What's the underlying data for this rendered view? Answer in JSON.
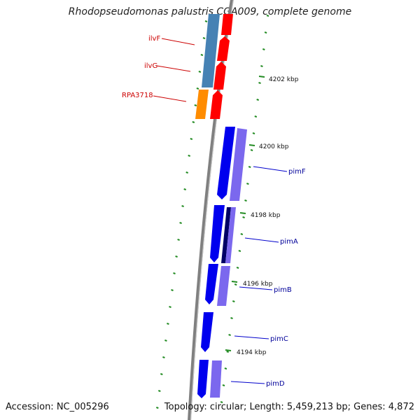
{
  "title": "Rhodopseudomonas palustris CGA009, complete genome",
  "accession": "Accession: NC_005296",
  "topology": "Topology: circular; Length: 5,459,213 bp; Genes: 4,872",
  "colors": {
    "backbone": "#808080",
    "tick": "#228b22",
    "red_label": "#cc0000",
    "blue_label": "#000099",
    "gene_red": "#ff0000",
    "gene_steel": "#4682b4",
    "gene_orange": "#ff8c00",
    "gene_blue": "#0000ee",
    "gene_lavender": "#7b68ee",
    "gene_navy": "#000066"
  },
  "scale_labels": [
    {
      "text": "4202 kbp"
    },
    {
      "text": "4200 kbp"
    },
    {
      "text": "4198 kbp"
    },
    {
      "text": "4196 kbp"
    },
    {
      "text": "4194 kbp"
    }
  ],
  "gene_labels": [
    {
      "text": "ilvF",
      "color": "red"
    },
    {
      "text": "ilvG",
      "color": "red"
    },
    {
      "text": "RPA3718",
      "color": "red"
    },
    {
      "text": "pimF",
      "color": "blue"
    },
    {
      "text": "pimA",
      "color": "blue"
    },
    {
      "text": "pimB",
      "color": "blue"
    },
    {
      "text": "pimC",
      "color": "blue"
    },
    {
      "text": "pimD",
      "color": "blue"
    }
  ]
}
